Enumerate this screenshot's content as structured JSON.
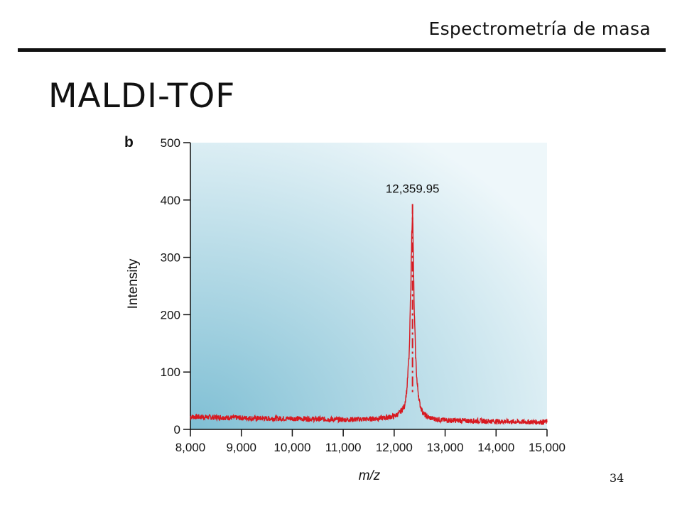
{
  "header": {
    "title": "Espectrometría de masa"
  },
  "slide": {
    "title": "MALDI-TOF",
    "page_number": "34"
  },
  "chart_data": {
    "type": "line",
    "panel_label": "b",
    "xlabel": "m/z",
    "ylabel": "Intensity",
    "xlim": [
      8000,
      15000
    ],
    "ylim": [
      0,
      500
    ],
    "x_ticks": [
      8000,
      9000,
      10000,
      11000,
      12000,
      13000,
      14000,
      15000
    ],
    "x_tick_labels": [
      "8,000",
      "9,000",
      "10,000",
      "11,000",
      "12,000",
      "13,000",
      "14,000",
      "15,000"
    ],
    "y_ticks": [
      0,
      100,
      200,
      300,
      400,
      500
    ],
    "y_tick_labels": [
      "0",
      "100",
      "200",
      "300",
      "400",
      "500"
    ],
    "series_color": "#d71920",
    "background_gradient": [
      "#7fbfd4",
      "#eef7fa"
    ],
    "grid": false,
    "annotations": [
      {
        "text": "12,359.95",
        "x": 12359.95,
        "y": 393
      }
    ],
    "series": [
      {
        "x": [
          8000,
          8500,
          9000,
          9500,
          10000,
          10500,
          11000,
          11500,
          11800,
          12000,
          12100,
          12200,
          12250,
          12300,
          12330,
          12350,
          12359.95,
          12370,
          12390,
          12420,
          12450,
          12500,
          12550,
          12600,
          12700,
          12800,
          13000,
          13500,
          14000,
          14500,
          15000
        ],
        "y": [
          22,
          21,
          20,
          19,
          19,
          18,
          17,
          18,
          20,
          23,
          28,
          40,
          70,
          140,
          270,
          360,
          393,
          330,
          220,
          130,
          80,
          45,
          32,
          25,
          20,
          18,
          16,
          15,
          14,
          13,
          13
        ]
      }
    ]
  }
}
